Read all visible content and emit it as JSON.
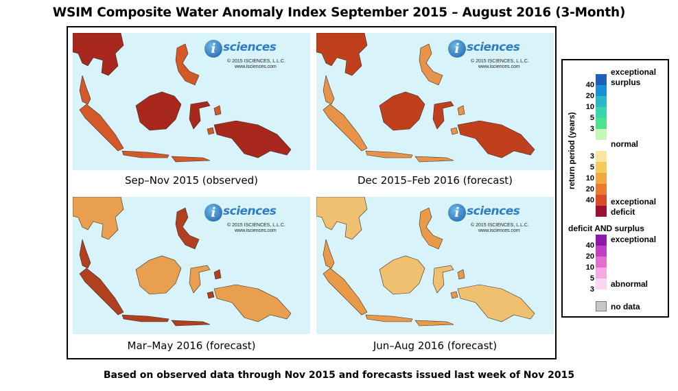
{
  "title": "WSIM Composite Water Anomaly Index September 2015 – August 2016 (3-Month)",
  "footnote": "Based on observed data through Nov 2015 and forecasts issued last week of Nov 2015",
  "logo": {
    "mark": "i",
    "word": "sciences",
    "copyright": "© 2015 ISCIENCES, L.L.C.",
    "url": "www.isciences.com"
  },
  "panels": [
    {
      "caption": "Sep–Nov 2015 (observed)",
      "fill": "#a8281e",
      "accent": "#d35a28"
    },
    {
      "caption": "Dec 2015–Feb 2016 (forecast)",
      "fill": "#c0401e",
      "accent": "#e7934a"
    },
    {
      "caption": "Mar–May 2016 (forecast)",
      "fill": "#e8a050",
      "accent": "#b04020"
    },
    {
      "caption": "Jun–Aug 2016 (forecast)",
      "fill": "#eec070",
      "accent": "#e89a48"
    }
  ],
  "legend": {
    "axis_label": "return period (years)",
    "exceptional_surplus": [
      "exceptional",
      "surplus"
    ],
    "normal": "normal",
    "exceptional_deficit": [
      "exceptional",
      "deficit"
    ],
    "surplus_scale": {
      "labels": [
        "40",
        "20",
        "10",
        "5",
        "3"
      ],
      "colors": [
        "#1f5fb8",
        "#1c8fd6",
        "#2fb5c8",
        "#38d6a8",
        "#50e090",
        "#c8f5b8"
      ]
    },
    "normal_color": "#ffffff",
    "deficit_scale": {
      "labels": [
        "3",
        "5",
        "10",
        "20",
        "40"
      ],
      "colors": [
        "#fbe5a0",
        "#f6c860",
        "#f0a840",
        "#e87a32",
        "#d84a2a",
        "#9a1030"
      ]
    },
    "both_heading": "deficit AND surplus",
    "both_top": "exceptional",
    "both_bottom": "abnormal",
    "both_scale": {
      "labels": [
        "40",
        "20",
        "10",
        "5",
        "3"
      ],
      "colors": [
        "#8a1aa8",
        "#c040c0",
        "#e070d0",
        "#f4a8e4",
        "#fad6f2"
      ]
    },
    "no_data": "no data",
    "no_data_color": "#c8c8c8"
  }
}
